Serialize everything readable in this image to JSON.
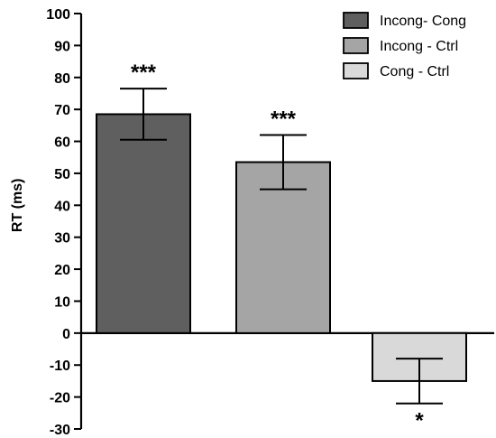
{
  "chart_data": {
    "type": "bar",
    "title": "",
    "xlabel": "",
    "ylabel": "RT (ms)",
    "ylim": [
      -30,
      100
    ],
    "yticks": [
      100,
      90,
      80,
      70,
      60,
      50,
      40,
      30,
      20,
      10,
      0,
      -10,
      -20,
      -30
    ],
    "grid": false,
    "legend_position": "top-right",
    "series": [
      {
        "name": "Incong- Cong",
        "value": 68.5,
        "error": 8.0,
        "significance": "***",
        "color": "#5f5f5f"
      },
      {
        "name": "Incong - Ctrl",
        "value": 53.5,
        "error": 8.5,
        "significance": "***",
        "color": "#a5a5a5"
      },
      {
        "name": "Cong - Ctrl",
        "value": -15.0,
        "error": 7.0,
        "significance": "*",
        "color": "#d9d9d9"
      }
    ]
  }
}
